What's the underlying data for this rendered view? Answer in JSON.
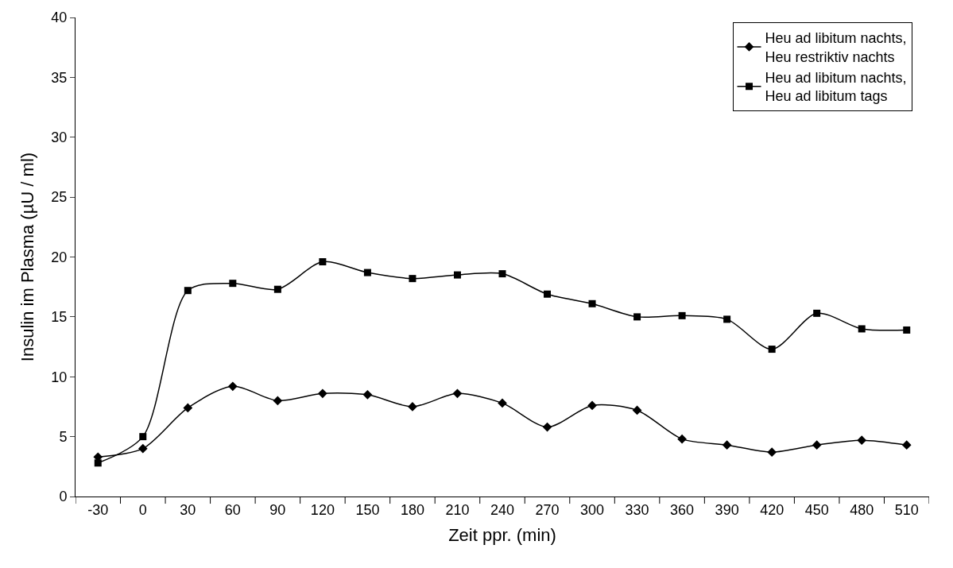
{
  "chart_data": {
    "type": "line",
    "xlabel": "Zeit ppr. (min)",
    "ylabel": "Insulin im Plasma (µU / ml)",
    "categories": [
      "-30",
      "0",
      "30",
      "60",
      "90",
      "120",
      "150",
      "180",
      "210",
      "240",
      "270",
      "300",
      "330",
      "360",
      "390",
      "420",
      "450",
      "480",
      "510"
    ],
    "series": [
      {
        "name": "Heu ad libitum nachts,\nHeu restriktiv nachts",
        "color": "#000000",
        "marker": "diamond",
        "values": [
          3.3,
          4.0,
          7.4,
          9.2,
          8.0,
          8.6,
          8.5,
          7.5,
          8.6,
          7.8,
          5.8,
          7.6,
          7.2,
          4.8,
          4.3,
          3.7,
          4.3,
          4.7,
          4.3
        ]
      },
      {
        "name": "Heu ad libitum nachts,\nHeu ad libitum tags",
        "color": "#000000",
        "marker": "square",
        "values": [
          2.8,
          5.0,
          17.2,
          17.8,
          17.3,
          19.6,
          18.7,
          18.2,
          18.5,
          18.6,
          16.9,
          16.1,
          15.0,
          15.1,
          14.8,
          12.3,
          15.3,
          14.0,
          13.9
        ]
      }
    ],
    "ylim": [
      0,
      40
    ],
    "yticks": [
      0,
      5,
      10,
      15,
      20,
      25,
      30,
      35,
      40
    ],
    "legend": "top right",
    "line_style": "solid"
  }
}
